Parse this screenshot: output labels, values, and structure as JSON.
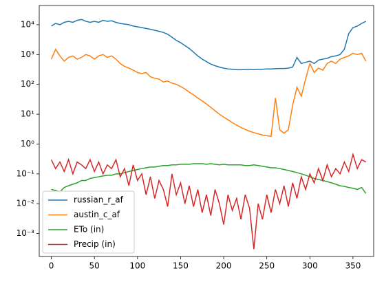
{
  "chart_data": {
    "type": "line",
    "log_scale_y": true,
    "legend": "lower left",
    "x": [
      0,
      5,
      10,
      15,
      20,
      25,
      30,
      35,
      40,
      45,
      50,
      55,
      60,
      65,
      70,
      75,
      80,
      85,
      90,
      95,
      100,
      105,
      110,
      115,
      120,
      125,
      130,
      135,
      140,
      145,
      150,
      155,
      160,
      165,
      170,
      175,
      180,
      185,
      190,
      195,
      200,
      205,
      210,
      215,
      220,
      225,
      230,
      235,
      240,
      245,
      250,
      255,
      260,
      265,
      270,
      275,
      280,
      285,
      290,
      295,
      300,
      305,
      310,
      315,
      320,
      325,
      330,
      335,
      340,
      345,
      350,
      355,
      360,
      365
    ],
    "series": [
      {
        "name": "russian_r_af",
        "color": "#1f77b4",
        "values": [
          9000,
          11000,
          10000,
          12000,
          13000,
          12000,
          14000,
          15000,
          13000,
          12000,
          13000,
          12000,
          14000,
          13000,
          13500,
          12000,
          11000,
          10500,
          10000,
          9000,
          8500,
          8000,
          7500,
          7000,
          6500,
          6000,
          5500,
          4800,
          3800,
          3000,
          2500,
          2000,
          1600,
          1200,
          900,
          700,
          580,
          480,
          420,
          380,
          350,
          330,
          320,
          310,
          310,
          315,
          320,
          310,
          320,
          320,
          330,
          330,
          335,
          340,
          340,
          350,
          380,
          800,
          500,
          550,
          600,
          500,
          650,
          700,
          750,
          850,
          900,
          1000,
          1500,
          5000,
          8000,
          9000,
          11000,
          13000
        ]
      },
      {
        "name": "austin_c_af",
        "color": "#ff7f0e",
        "values": [
          700,
          1500,
          900,
          600,
          800,
          900,
          700,
          800,
          1000,
          900,
          700,
          900,
          1000,
          800,
          900,
          700,
          500,
          400,
          350,
          300,
          250,
          230,
          250,
          180,
          160,
          150,
          120,
          130,
          110,
          100,
          85,
          70,
          55,
          45,
          35,
          28,
          22,
          17,
          13,
          10,
          8,
          6.5,
          5.2,
          4.3,
          3.6,
          3.1,
          2.7,
          2.4,
          2.2,
          2.0,
          1.9,
          1.8,
          35,
          3,
          2.3,
          3,
          20,
          80,
          40,
          150,
          500,
          250,
          350,
          300,
          500,
          600,
          500,
          700,
          800,
          900,
          1100,
          1000,
          1100,
          600
        ]
      },
      {
        "name": "ETo (in)",
        "color": "#2ca02c",
        "values": [
          0.03,
          0.028,
          0.025,
          0.035,
          0.04,
          0.045,
          0.05,
          0.06,
          0.06,
          0.07,
          0.075,
          0.08,
          0.085,
          0.09,
          0.09,
          0.1,
          0.1,
          0.11,
          0.12,
          0.13,
          0.14,
          0.15,
          0.16,
          0.17,
          0.17,
          0.18,
          0.19,
          0.19,
          0.2,
          0.2,
          0.21,
          0.21,
          0.21,
          0.22,
          0.22,
          0.22,
          0.21,
          0.22,
          0.21,
          0.2,
          0.21,
          0.2,
          0.2,
          0.2,
          0.2,
          0.19,
          0.19,
          0.2,
          0.19,
          0.18,
          0.17,
          0.16,
          0.16,
          0.15,
          0.14,
          0.13,
          0.12,
          0.11,
          0.1,
          0.09,
          0.08,
          0.07,
          0.065,
          0.06,
          0.055,
          0.05,
          0.045,
          0.04,
          0.038,
          0.035,
          0.033,
          0.03,
          0.035,
          0.022
        ]
      },
      {
        "name": "Precip (in)",
        "color": "#d62728",
        "values": [
          0.3,
          0.15,
          0.25,
          0.12,
          0.3,
          0.1,
          0.25,
          0.2,
          0.15,
          0.3,
          0.12,
          0.25,
          0.1,
          0.2,
          0.15,
          0.3,
          0.08,
          0.15,
          0.04,
          0.2,
          0.06,
          0.1,
          0.02,
          0.08,
          0.015,
          0.06,
          0.03,
          0.008,
          0.1,
          0.02,
          0.05,
          0.01,
          0.04,
          0.008,
          0.03,
          0.005,
          0.02,
          0.004,
          0.03,
          0.01,
          0.002,
          0.02,
          0.006,
          0.015,
          0.003,
          0.02,
          0.007,
          0.0003,
          0.01,
          0.003,
          0.02,
          0.005,
          0.03,
          0.01,
          0.04,
          0.008,
          0.05,
          0.015,
          0.08,
          0.03,
          0.1,
          0.05,
          0.15,
          0.06,
          0.2,
          0.08,
          0.15,
          0.1,
          0.25,
          0.12,
          0.45,
          0.15,
          0.3,
          0.25
        ]
      }
    ],
    "xlim": [
      -14,
      374
    ],
    "xticks": [
      0,
      50,
      100,
      150,
      200,
      250,
      300,
      350
    ],
    "ylim": [
      0.00017,
      44000
    ],
    "yticks": [
      {
        "value": 0.001,
        "label": "10⁻³"
      },
      {
        "value": 0.01,
        "label": "10⁻²"
      },
      {
        "value": 0.1,
        "label": "10⁻¹"
      },
      {
        "value": 1,
        "label": "10⁰"
      },
      {
        "value": 10,
        "label": "10¹"
      },
      {
        "value": 100,
        "label": "10²"
      },
      {
        "value": 1000,
        "label": "10³"
      },
      {
        "value": 10000,
        "label": "10⁴"
      }
    ]
  }
}
